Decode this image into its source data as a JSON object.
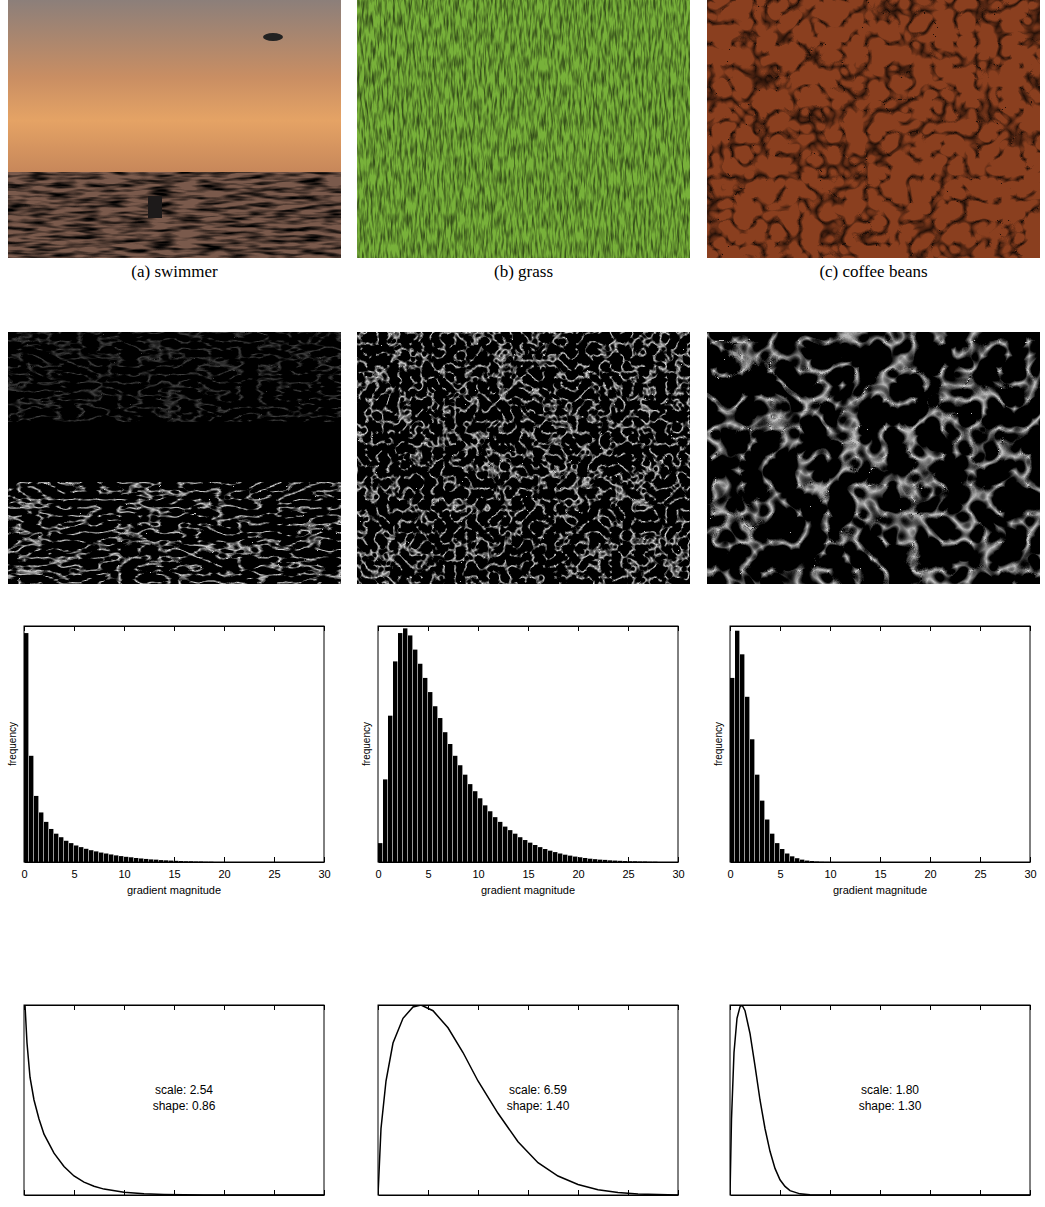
{
  "figure": {
    "captions": [
      "(a) swimmer",
      "(b) grass",
      "(c) coffee beans"
    ]
  },
  "chart_data": [
    {
      "type": "histogram",
      "x_label": "gradient magnitude",
      "y_label": "frequency",
      "color": "#000000",
      "bins": [
        0,
        0.5,
        1,
        1.5,
        2,
        2.5,
        3,
        3.5,
        4,
        4.5,
        5,
        5.5,
        6,
        6.5,
        7,
        7.5,
        8,
        8.5,
        9,
        9.5,
        10,
        10.5,
        11,
        11.5,
        12,
        12.5,
        13,
        13.5,
        14,
        14.5,
        15,
        15.5,
        16,
        16.5,
        17,
        17.5,
        18,
        18.5,
        19,
        19.5,
        20,
        20.5,
        21,
        21.5,
        22,
        22.5,
        23,
        23.5,
        24,
        24.5,
        25,
        25.5,
        26,
        26.5,
        27,
        27.5,
        28,
        28.5,
        29,
        29.5,
        30
      ],
      "counts": [
        97,
        45,
        28,
        21,
        17,
        14,
        12,
        10.5,
        9,
        8,
        7,
        6.3,
        5.6,
        5,
        4.5,
        4,
        3.6,
        3.2,
        2.8,
        2.5,
        2.2,
        2,
        1.7,
        1.5,
        1.3,
        1.1,
        1,
        0.8,
        0.7,
        0.6,
        0.5,
        0.4,
        0.3,
        0.3,
        0.2,
        0.2,
        0.1,
        0.1,
        0,
        0,
        0,
        0,
        0,
        0,
        0,
        0,
        0,
        0,
        0,
        0,
        0,
        0,
        0,
        0,
        0,
        0,
        0,
        0,
        0,
        0
      ],
      "xlim": [
        0,
        30
      ],
      "ylim": [
        0,
        100
      ],
      "xticks": [
        0,
        5,
        10,
        15,
        20,
        25,
        30
      ],
      "tick_labels": "x"
    },
    {
      "type": "histogram",
      "x_label": "gradient magnitude",
      "y_label": "frequency",
      "color": "#000000",
      "bins": [
        0,
        0.5,
        1,
        1.5,
        2,
        2.5,
        3,
        3.5,
        4,
        4.5,
        5,
        5.5,
        6,
        6.5,
        7,
        7.5,
        8,
        8.5,
        9,
        9.5,
        10,
        10.5,
        11,
        11.5,
        12,
        12.5,
        13,
        13.5,
        14,
        14.5,
        15,
        15.5,
        16,
        16.5,
        17,
        17.5,
        18,
        18.5,
        19,
        19.5,
        20,
        20.5,
        21,
        21.5,
        22,
        22.5,
        23,
        23.5,
        24,
        24.5,
        25,
        25.5,
        26,
        26.5,
        27,
        27.5,
        28,
        28.5,
        29,
        29.5,
        30
      ],
      "counts": [
        8,
        35,
        62,
        85,
        97,
        99,
        96,
        90,
        84,
        78,
        72,
        66,
        61,
        55,
        50,
        45,
        41,
        37,
        33,
        30,
        27,
        24,
        21.5,
        19,
        17,
        15,
        13.5,
        12,
        10.5,
        9.3,
        8.2,
        7.2,
        6.3,
        5.5,
        4.8,
        4.2,
        3.6,
        3.1,
        2.7,
        2.3,
        2,
        1.7,
        1.4,
        1.2,
        1,
        0.9,
        0.7,
        0.6,
        0.5,
        0.4,
        0.3,
        0.3,
        0.2,
        0.2,
        0.1,
        0.1,
        0,
        0,
        0,
        0
      ],
      "xlim": [
        0,
        30
      ],
      "ylim": [
        0,
        100
      ],
      "xticks": [
        0,
        5,
        10,
        15,
        20,
        25,
        30
      ],
      "tick_labels": "x"
    },
    {
      "type": "histogram",
      "x_label": "gradient magnitude",
      "y_label": "frequency",
      "color": "#000000",
      "bins": [
        0,
        0.5,
        1,
        1.5,
        2,
        2.5,
        3,
        3.5,
        4,
        4.5,
        5,
        5.5,
        6,
        6.5,
        7,
        7.5,
        8,
        8.5,
        9,
        9.5,
        10,
        10.5,
        11,
        11.5,
        12,
        12.5,
        13,
        13.5,
        14,
        14.5,
        15,
        15.5,
        16,
        16.5,
        17,
        17.5,
        18,
        18.5,
        19,
        19.5,
        20,
        20.5,
        21,
        21.5,
        22,
        22.5,
        23,
        23.5,
        24,
        24.5,
        25,
        25.5,
        26,
        26.5,
        27,
        27.5,
        28,
        28.5,
        29,
        29.5,
        30
      ],
      "counts": [
        78,
        98,
        88,
        70,
        52,
        37,
        26,
        18,
        12,
        8,
        5.5,
        3.6,
        2.4,
        1.6,
        1,
        0.6,
        0.4,
        0.2,
        0.1,
        0.05,
        0,
        0,
        0,
        0,
        0,
        0,
        0,
        0,
        0,
        0,
        0,
        0,
        0,
        0,
        0,
        0,
        0,
        0,
        0,
        0,
        0,
        0,
        0,
        0,
        0,
        0,
        0,
        0,
        0,
        0,
        0,
        0,
        0,
        0,
        0,
        0,
        0,
        0,
        0,
        0
      ],
      "xlim": [
        0,
        30
      ],
      "ylim": [
        0,
        100
      ],
      "xticks": [
        0,
        5,
        10,
        15,
        20,
        25,
        30
      ],
      "tick_labels": "x"
    },
    {
      "type": "line",
      "color": "#000000",
      "x": [
        0.1,
        0.3,
        0.6,
        1,
        1.5,
        2,
        3,
        4,
        5,
        6,
        7,
        8,
        10,
        12,
        14,
        16,
        18,
        20,
        25,
        30
      ],
      "values": [
        100,
        80,
        62,
        50,
        40,
        32,
        22,
        15,
        10,
        6.8,
        4.6,
        3.1,
        1.4,
        0.6,
        0.3,
        0.1,
        0.05,
        0,
        0,
        0
      ],
      "annotations": [
        "scale: 2.54",
        "shape: 0.86"
      ],
      "xlim": [
        0,
        30
      ],
      "ylim": [
        0,
        100
      ],
      "xticks": [
        0,
        5,
        10,
        15,
        20,
        25,
        30
      ],
      "tick_labels": false
    },
    {
      "type": "line",
      "color": "#000000",
      "x": [
        0,
        0.3,
        0.8,
        1.5,
        2.5,
        3.5,
        4.3,
        5.5,
        7,
        8.5,
        10,
        12,
        14,
        16,
        18,
        20,
        22,
        24,
        26,
        28,
        30
      ],
      "values": [
        0,
        35,
        60,
        80,
        93,
        99,
        100,
        97,
        88,
        75,
        60,
        43,
        28,
        17,
        10,
        5.5,
        2.8,
        1.3,
        0.5,
        0.2,
        0.05
      ],
      "annotations": [
        "scale: 6.59",
        "shape: 1.40"
      ],
      "xlim": [
        0,
        30
      ],
      "ylim": [
        0,
        100
      ],
      "xticks": [
        0,
        5,
        10,
        15,
        20,
        25,
        30
      ],
      "tick_labels": false
    },
    {
      "type": "line",
      "color": "#000000",
      "x": [
        0,
        0.15,
        0.4,
        0.7,
        1,
        1.2,
        1.5,
        2,
        2.5,
        3,
        3.5,
        4,
        4.5,
        5,
        5.5,
        6,
        7,
        8,
        10,
        30
      ],
      "values": [
        0,
        40,
        75,
        93,
        99,
        100,
        97,
        85,
        68,
        50,
        35,
        23,
        14,
        8,
        4.5,
        2.3,
        0.6,
        0.1,
        0,
        0
      ],
      "annotations": [
        "scale: 1.80",
        "shape: 1.30"
      ],
      "xlim": [
        0,
        30
      ],
      "ylim": [
        0,
        100
      ],
      "xticks": [
        0,
        5,
        10,
        15,
        20,
        25,
        30
      ],
      "tick_labels": false
    }
  ]
}
